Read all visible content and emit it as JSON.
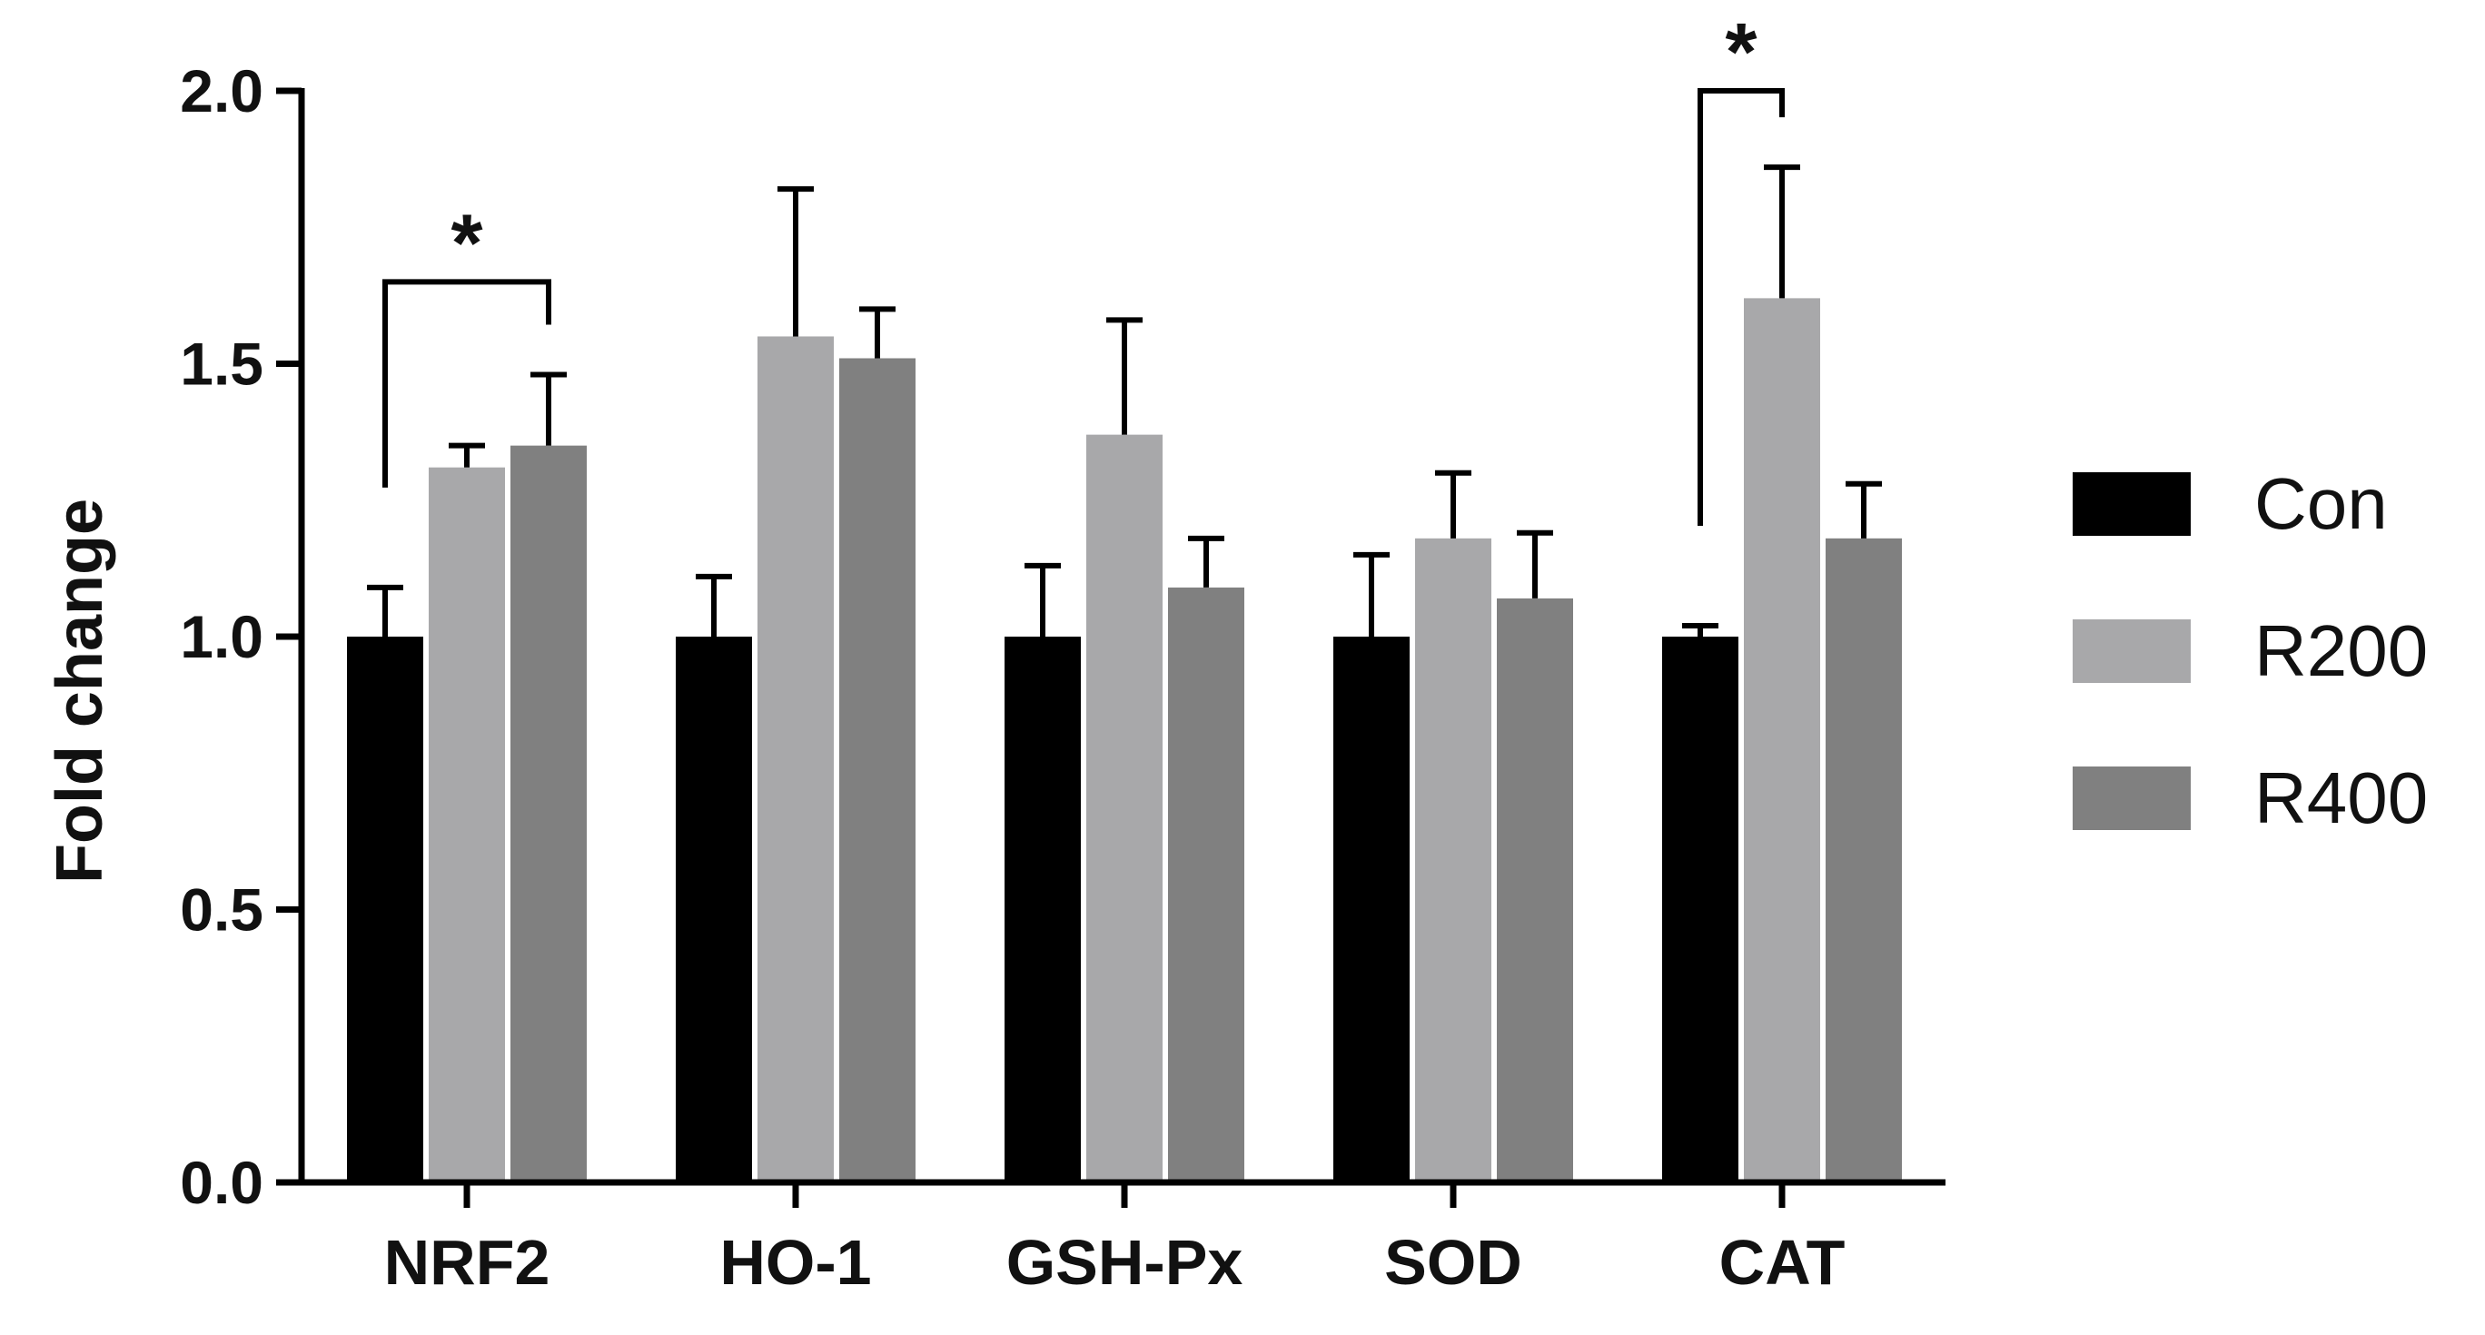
{
  "chart_data": {
    "type": "bar",
    "title": "",
    "xlabel": "",
    "ylabel": "Fold change",
    "ylim": [
      0,
      2.0
    ],
    "yticks": [
      0.0,
      0.5,
      1.0,
      1.5,
      2.0
    ],
    "ytick_labels": [
      "0.0",
      "0.5",
      "1.0",
      "1.5",
      "2.0"
    ],
    "categories": [
      "NRF2",
      "HO-1",
      "GSH-Px",
      "SOD",
      "CAT"
    ],
    "series": [
      {
        "name": "Con",
        "color": "#000000",
        "values": [
          1.0,
          1.0,
          1.0,
          1.0,
          1.0
        ],
        "errors": [
          0.09,
          0.11,
          0.13,
          0.15,
          0.02
        ]
      },
      {
        "name": "R200",
        "color": "#a8a8aa",
        "values": [
          1.31,
          1.55,
          1.37,
          1.18,
          1.62
        ],
        "errors": [
          0.04,
          0.27,
          0.21,
          0.12,
          0.24
        ]
      },
      {
        "name": "R400",
        "color": "#808080",
        "values": [
          1.35,
          1.51,
          1.09,
          1.07,
          1.18
        ],
        "errors": [
          0.13,
          0.09,
          0.09,
          0.12,
          0.1
        ]
      }
    ],
    "legend": {
      "position": "right",
      "entries": [
        "Con",
        "R200",
        "R400"
      ]
    },
    "grid": false,
    "annotations": [
      {
        "text": "*",
        "category": "NRF2",
        "from_series": "Con",
        "to_series": "R400",
        "bracket_top": 1.65
      },
      {
        "text": "*",
        "category": "CAT",
        "from_series": "Con",
        "to_series": "R200",
        "bracket_top": 2.0
      }
    ]
  }
}
